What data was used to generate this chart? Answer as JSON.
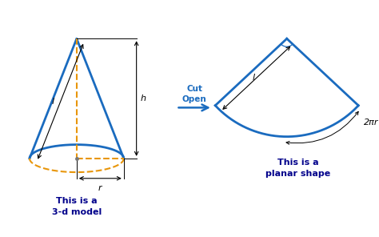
{
  "bg_color": "#ffffff",
  "cone_color": "#1a6bbf",
  "cone_lw": 2.0,
  "dashed_color": "#e8960a",
  "arrow_color": "#1a6bbf",
  "label_color": "#00008B",
  "dim_color": "#000000",
  "text_3d": "This is a\n3-d model",
  "text_planar": "This is a\nplanar shape",
  "arrow_text": "Cut\nOpen",
  "label_l": "l",
  "label_h": "h",
  "label_r": "r",
  "label_2pi": "2πr",
  "fig_w": 4.74,
  "fig_h": 2.96,
  "dpi": 100
}
